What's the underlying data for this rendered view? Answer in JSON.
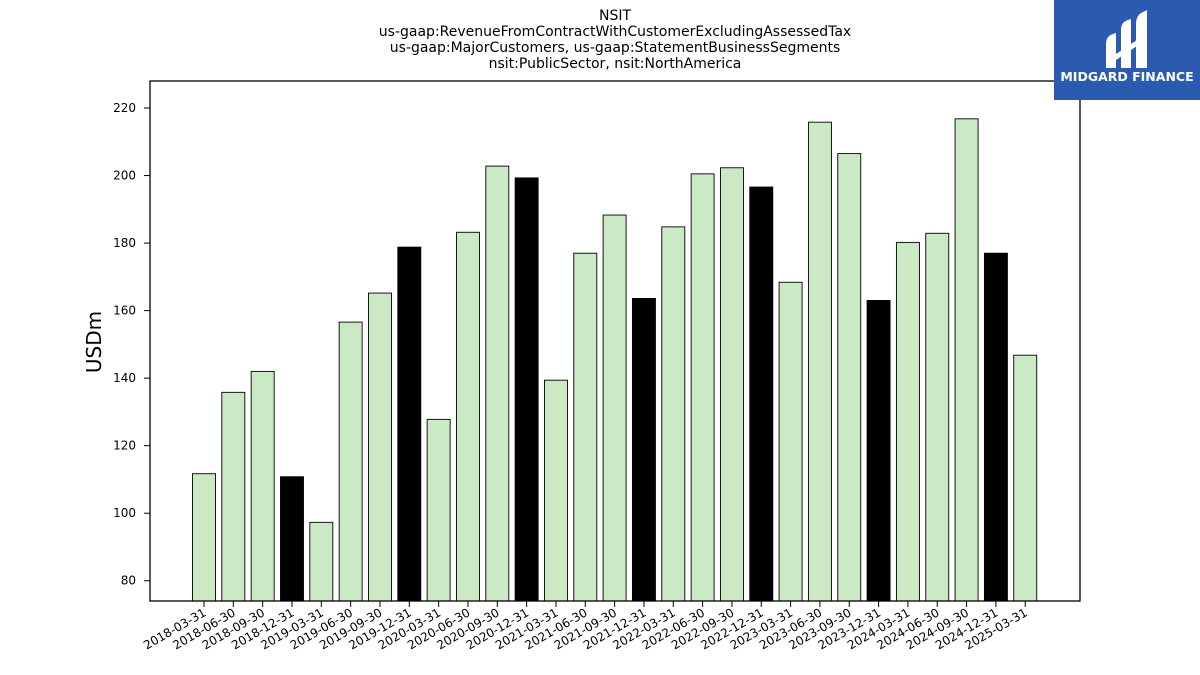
{
  "chart_data": {
    "type": "bar",
    "title_lines": [
      "NSIT",
      "us-gaap:RevenueFromContractWithCustomerExcludingAssessedTax",
      "us-gaap:MajorCustomers, us-gaap:StatementBusinessSegments",
      "nsit:PublicSector, nsit:NorthAmerica"
    ],
    "xlabel": "",
    "ylabel": "USDm",
    "ylim": [
      74,
      228
    ],
    "yticks": [
      80,
      100,
      120,
      140,
      160,
      180,
      200,
      220
    ],
    "grid": false,
    "categories": [
      "2018-03-31",
      "2018-06-30",
      "2018-09-30",
      "2018-12-31",
      "2019-03-31",
      "2019-06-30",
      "2019-09-30",
      "2019-12-31",
      "2020-03-31",
      "2020-06-30",
      "2020-09-30",
      "2020-12-31",
      "2021-03-31",
      "2021-06-30",
      "2021-09-30",
      "2021-12-31",
      "2022-03-31",
      "2022-06-30",
      "2022-09-30",
      "2022-12-31",
      "2023-03-31",
      "2023-06-30",
      "2023-09-30",
      "2023-12-31",
      "2024-03-31",
      "2024-06-30",
      "2024-09-30",
      "2024-12-31",
      "2025-03-31"
    ],
    "values": [
      111.7,
      135.8,
      142.0,
      110.8,
      97.3,
      156.6,
      165.2,
      178.8,
      127.8,
      183.2,
      202.8,
      199.3,
      139.4,
      177.0,
      188.3,
      163.6,
      184.8,
      200.5,
      202.3,
      196.6,
      168.4,
      215.8,
      206.5,
      163.0,
      180.2,
      182.9,
      216.8,
      177.0,
      146.8
    ],
    "bar_colors": {
      "default": "#cce9c5",
      "year_end": "#000000",
      "edge": "#000000"
    }
  },
  "logo": {
    "text": "MIDGARD FINANCE",
    "background": "#2b5bb0"
  }
}
